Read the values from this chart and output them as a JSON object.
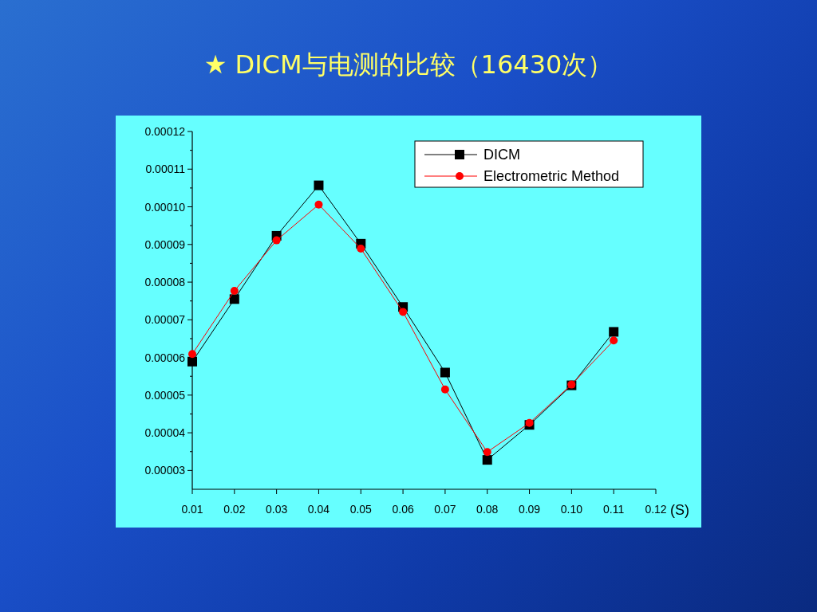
{
  "chart_data": {
    "type": "line",
    "title": "★ DICM与电测的比较（16430次）",
    "xlabel": "(S)",
    "x": [
      0.01,
      0.02,
      0.03,
      0.04,
      0.05,
      0.06,
      0.07,
      0.08,
      0.09,
      0.1,
      0.11
    ],
    "series": [
      {
        "name": "DICM",
        "color": "#000000",
        "marker": "square",
        "values": [
          5.89e-05,
          7.55e-05,
          9.23e-05,
          0.0001057,
          9.02e-05,
          7.34e-05,
          5.6e-05,
          3.28e-05,
          4.21e-05,
          5.26e-05,
          6.68e-05
        ]
      },
      {
        "name": "Electrometric Method",
        "color": "#ff0000",
        "marker": "circle",
        "values": [
          6.09e-05,
          7.77e-05,
          9.11e-05,
          0.0001006,
          8.89e-05,
          7.21e-05,
          5.15e-05,
          3.49e-05,
          4.26e-05,
          5.28e-05,
          6.45e-05
        ]
      }
    ],
    "xlim": [
      0.01,
      0.12
    ],
    "ylim": [
      2.5e-05,
      0.00012
    ],
    "xticks": [
      {
        "value": 0.01,
        "label": "0.01"
      },
      {
        "value": 0.02,
        "label": "0.02"
      },
      {
        "value": 0.03,
        "label": "0.03"
      },
      {
        "value": 0.04,
        "label": "0.04"
      },
      {
        "value": 0.05,
        "label": "0.05"
      },
      {
        "value": 0.06,
        "label": "0.06"
      },
      {
        "value": 0.07,
        "label": "0.07"
      },
      {
        "value": 0.08,
        "label": "0.08"
      },
      {
        "value": 0.09,
        "label": "0.09"
      },
      {
        "value": 0.1,
        "label": "0.10"
      },
      {
        "value": 0.11,
        "label": "0.11"
      },
      {
        "value": 0.12,
        "label": "0.12"
      }
    ],
    "yticks": [
      {
        "value": 3e-05,
        "label": "0.00003"
      },
      {
        "value": 3.5e-05,
        "label": null
      },
      {
        "value": 4e-05,
        "label": "0.00004"
      },
      {
        "value": 4.5e-05,
        "label": null
      },
      {
        "value": 5e-05,
        "label": "0.00005"
      },
      {
        "value": 5.5e-05,
        "label": null
      },
      {
        "value": 6e-05,
        "label": "0.00006"
      },
      {
        "value": 6.5e-05,
        "label": null
      },
      {
        "value": 7e-05,
        "label": "0.00007"
      },
      {
        "value": 7.5e-05,
        "label": null
      },
      {
        "value": 8e-05,
        "label": "0.00008"
      },
      {
        "value": 8.5e-05,
        "label": null
      },
      {
        "value": 9e-05,
        "label": "0.00009"
      },
      {
        "value": 9.5e-05,
        "label": null
      },
      {
        "value": 0.0001,
        "label": "0.00010"
      },
      {
        "value": 0.000105,
        "label": null
      },
      {
        "value": 0.00011,
        "label": "0.00011"
      },
      {
        "value": 0.000115,
        "label": null
      },
      {
        "value": 0.00012,
        "label": "0.00012"
      }
    ],
    "grid": false,
    "legend": "top right",
    "line_style": "solid"
  }
}
